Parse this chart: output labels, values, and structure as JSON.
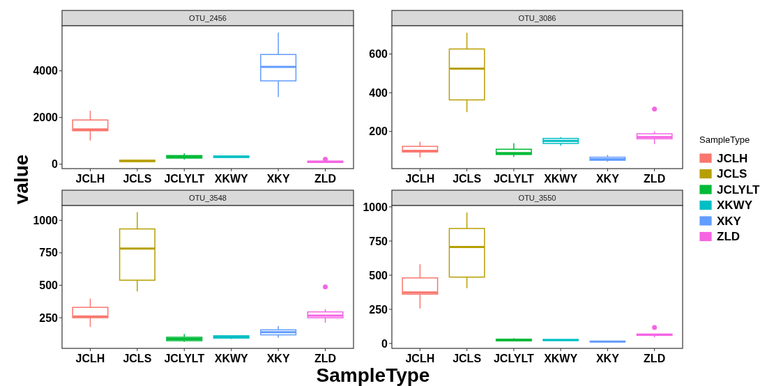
{
  "chart_data": [
    {
      "type": "box",
      "title": "OTU_2456",
      "ylabel": "value",
      "categories": [
        "JCLH",
        "JCLS",
        "JCLYLT",
        "XKWY",
        "XKY",
        "ZLD"
      ],
      "colors": [
        "#f8766d",
        "#b79f00",
        "#00ba38",
        "#00bfc4",
        "#619cff",
        "#f564e3"
      ],
      "ylim": [
        -190,
        5930
      ],
      "yticks": [
        0,
        2000,
        4000
      ],
      "boxes": [
        {
          "low": 1015,
          "q1": 1433,
          "median": 1493,
          "q3": 1893,
          "high": 2290
        },
        {
          "low": 100,
          "q1": 110,
          "median": 140,
          "q3": 170,
          "high": 180
        },
        {
          "low": 200,
          "q1": 260,
          "median": 300,
          "q3": 370,
          "high": 470
        },
        {
          "low": 280,
          "q1": 290,
          "median": 320,
          "q3": 350,
          "high": 360
        },
        {
          "low": 2880,
          "q1": 3570,
          "median": 4170,
          "q3": 4700,
          "high": 5640
        },
        {
          "low": 70,
          "q1": 80,
          "median": 100,
          "q3": 130,
          "high": 150,
          "outliers": [
            210
          ]
        }
      ]
    },
    {
      "type": "box",
      "title": "OTU_3086",
      "legend": "right",
      "legend_title": "SampleType",
      "categories": [
        "JCLH",
        "JCLS",
        "JCLYLT",
        "XKWY",
        "XKY",
        "ZLD"
      ],
      "ylim": [
        8,
        746
      ],
      "yticks": [
        200,
        400,
        600
      ],
      "series": [
        {
          "name": "JCLH",
          "color": "#f8766d",
          "boxes": [
            {
              "low": 66,
              "q1": 94,
              "median": 100,
              "q3": 123,
              "high": 147
            },
            null,
            null,
            null,
            null,
            null
          ]
        },
        {
          "name": "JCLS",
          "color": "#b79f00",
          "boxes": [
            null,
            {
              "low": 300,
              "q1": 363,
              "median": 525,
              "q3": 626,
              "high": 710
            },
            null,
            null,
            null,
            null
          ]
        },
        {
          "name": "JCLYLT",
          "color": "#00ba38",
          "boxes": [
            null,
            null,
            {
              "low": 68,
              "q1": 81,
              "median": 88,
              "q3": 108,
              "high": 139
            },
            null,
            null,
            null
          ]
        },
        {
          "name": "XKWY",
          "color": "#00bfc4",
          "boxes": [
            null,
            null,
            null,
            {
              "low": 127,
              "q1": 138,
              "median": 151,
              "q3": 164,
              "high": 171
            },
            null,
            null
          ]
        },
        {
          "name": "XKY",
          "color": "#619cff",
          "boxes": [
            null,
            null,
            null,
            null,
            {
              "low": 43,
              "q1": 51,
              "median": 57,
              "q3": 67,
              "high": 79
            },
            null
          ]
        },
        {
          "name": "ZLD",
          "color": "#f564e3",
          "boxes": [
            null,
            null,
            null,
            null,
            null,
            {
              "low": 135,
              "q1": 162,
              "median": 171,
              "q3": 188,
              "high": 200,
              "outliers": [
                316
              ]
            }
          ]
        }
      ]
    },
    {
      "type": "box",
      "title": "OTU_3548",
      "xlabel": "SampleType",
      "categories": [
        "JCLH",
        "JCLS",
        "JCLYLT",
        "XKWY",
        "XKY",
        "ZLD"
      ],
      "colors": [
        "#f8766d",
        "#b79f00",
        "#00ba38",
        "#00bfc4",
        "#619cff",
        "#f564e3"
      ],
      "ylim": [
        14,
        1114
      ],
      "yticks": [
        250,
        500,
        750,
        1000
      ],
      "boxes": [
        {
          "low": 179,
          "q1": 250,
          "median": 259,
          "q3": 330,
          "high": 397
        },
        {
          "low": 452,
          "q1": 539,
          "median": 783,
          "q3": 934,
          "high": 1063
        },
        {
          "low": 64,
          "q1": 73,
          "median": 86,
          "q3": 100,
          "high": 125
        },
        {
          "low": 86,
          "q1": 93,
          "median": 103,
          "q3": 111,
          "high": 114
        },
        {
          "low": 96,
          "q1": 118,
          "median": 139,
          "q3": 157,
          "high": 186
        },
        {
          "low": 211,
          "q1": 250,
          "median": 266,
          "q3": 295,
          "high": 315,
          "outliers": [
            488
          ]
        }
      ]
    },
    {
      "type": "box",
      "title": "OTU_3550",
      "categories": [
        "JCLH",
        "JCLS",
        "JCLYLT",
        "XKWY",
        "XKY",
        "ZLD"
      ],
      "colors": [
        "#f8766d",
        "#b79f00",
        "#00ba38",
        "#00bfc4",
        "#619cff",
        "#f564e3"
      ],
      "ylim": [
        -36,
        1010
      ],
      "yticks": [
        0,
        250,
        500,
        750,
        1000
      ],
      "boxes": [
        {
          "low": 256,
          "q1": 361,
          "median": 373,
          "q3": 480,
          "high": 580
        },
        {
          "low": 405,
          "q1": 486,
          "median": 707,
          "q3": 842,
          "high": 959
        },
        {
          "low": 15,
          "q1": 19,
          "median": 25,
          "q3": 31,
          "high": 39
        },
        {
          "low": 20,
          "q1": 22,
          "median": 25,
          "q3": 28,
          "high": 30
        },
        {
          "low": 10,
          "q1": 12,
          "median": 14,
          "q3": 16,
          "high": 18
        },
        {
          "low": 46,
          "q1": 59,
          "median": 64,
          "q3": 69,
          "high": 69,
          "outliers": [
            117
          ]
        }
      ]
    }
  ]
}
